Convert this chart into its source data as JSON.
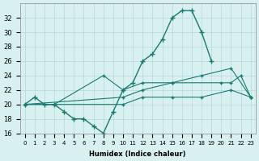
{
  "xlabel": "Humidex (Indice chaleur)",
  "x": [
    0,
    1,
    2,
    3,
    4,
    5,
    6,
    7,
    8,
    9,
    10,
    11,
    12,
    13,
    14,
    15,
    16,
    17,
    18,
    19,
    20,
    21,
    22,
    23
  ],
  "line1": [
    20,
    21,
    20,
    20,
    19,
    18,
    18,
    17,
    16,
    19,
    22,
    23,
    26,
    27,
    29,
    32,
    33,
    33,
    30,
    26,
    null,
    null,
    null,
    null
  ],
  "line2": [
    20,
    null,
    null,
    20,
    null,
    null,
    null,
    null,
    24,
    null,
    22,
    null,
    23,
    null,
    null,
    23,
    null,
    null,
    null,
    null,
    23,
    23,
    24,
    21
  ],
  "line3": [
    20,
    null,
    null,
    null,
    null,
    null,
    null,
    null,
    null,
    null,
    21,
    null,
    22,
    null,
    null,
    23,
    null,
    null,
    24,
    null,
    null,
    25,
    null,
    21
  ],
  "line4": [
    20,
    null,
    null,
    null,
    null,
    null,
    null,
    null,
    null,
    null,
    20,
    null,
    21,
    null,
    null,
    21,
    null,
    null,
    21,
    null,
    null,
    22,
    null,
    21
  ],
  "color": "#1a7a6e",
  "bg_color": "#d8f0f0",
  "grid_color": "#b0d8d8",
  "ylim": [
    16,
    34
  ],
  "xlim": [
    -0.5,
    23.5
  ],
  "yticks": [
    16,
    18,
    20,
    22,
    24,
    26,
    28,
    30,
    32
  ],
  "xticks": [
    0,
    1,
    2,
    3,
    4,
    5,
    6,
    7,
    8,
    9,
    10,
    11,
    12,
    13,
    14,
    15,
    16,
    17,
    18,
    19,
    20,
    21,
    22,
    23
  ]
}
